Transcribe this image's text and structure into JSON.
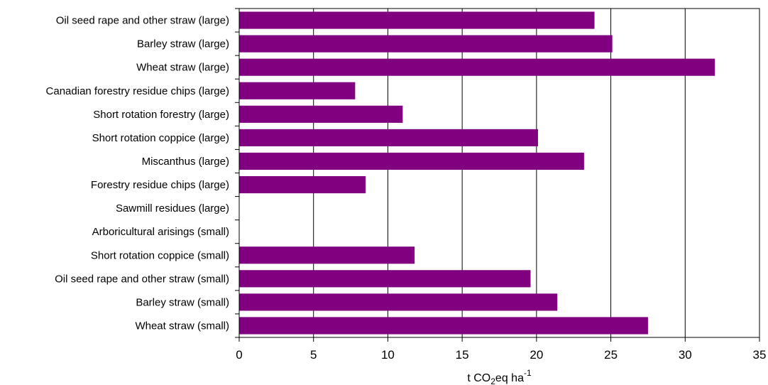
{
  "chart_data": {
    "type": "bar",
    "orientation": "horizontal",
    "title": "",
    "ylabel": "",
    "xlabel_parts": {
      "prefix": "t CO",
      "subscript": "2",
      "middle": "eq ha",
      "superscript": "-1"
    },
    "xlim": [
      0,
      35
    ],
    "xticks": [
      0,
      5,
      10,
      15,
      20,
      25,
      30,
      35
    ],
    "grid": "vertical",
    "legend": "none",
    "bar_color": "#800080",
    "categories": [
      "Oil seed rape and other straw (large)",
      "Barley straw (large)",
      "Wheat straw (large)",
      "Canadian forestry residue chips (large)",
      "Short rotation forestry (large)",
      "Short rotation coppice (large)",
      "Miscanthus (large)",
      "Forestry residue chips (large)",
      "Sawmill residues (large)",
      "Arboricultural arisings (small)",
      "Short rotation coppice (small)",
      "Oil seed rape and other straw (small)",
      "Barley straw (small)",
      "Wheat straw (small)"
    ],
    "values": [
      23.9,
      25.1,
      32.0,
      7.8,
      11.0,
      20.1,
      23.2,
      8.5,
      0,
      0,
      11.8,
      19.6,
      21.4,
      27.5
    ]
  }
}
